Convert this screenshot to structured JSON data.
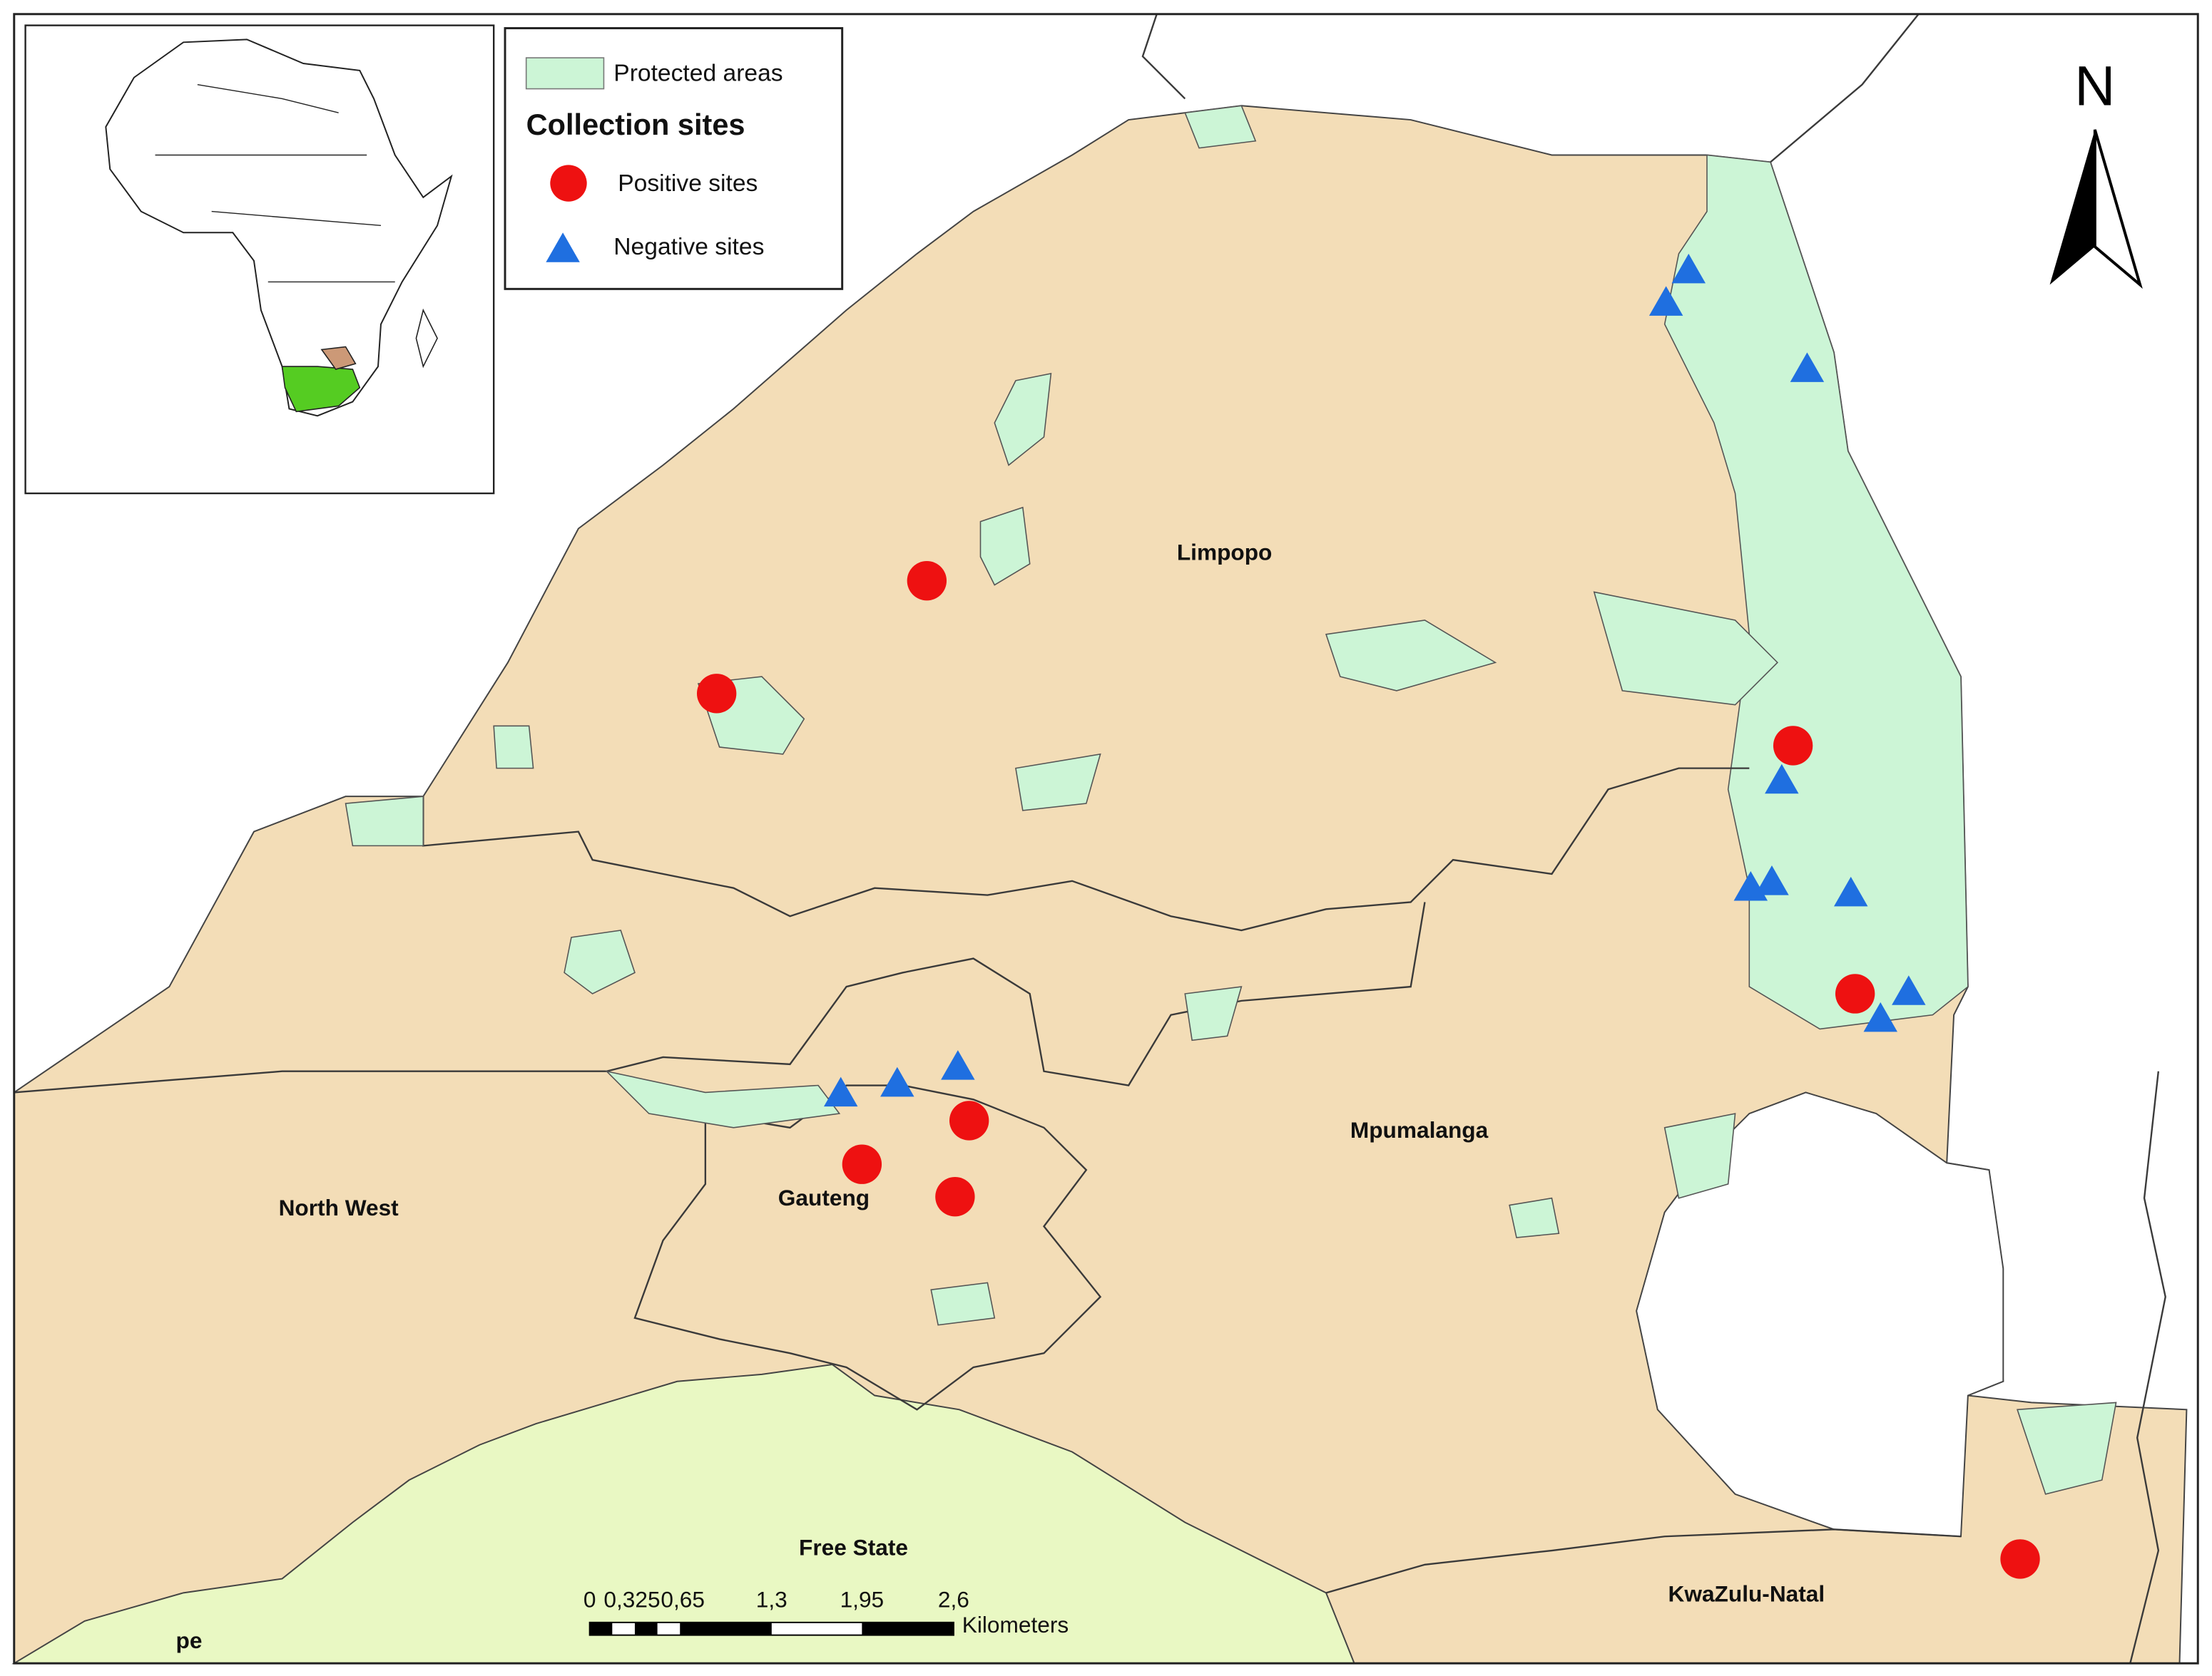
{
  "legend": {
    "protected_areas": "Protected areas",
    "title": "Collection sites",
    "items": [
      "Positive sites",
      "Negative sites"
    ]
  },
  "north": "N",
  "regions": [
    "Limpopo",
    "Mpumalanga",
    "North West",
    "Gauteng",
    "Free State",
    "KwaZulu-Natal",
    "pe"
  ],
  "scale_bar": {
    "labels": [
      "0",
      "0,325",
      "0,65",
      "1,3",
      "1,95",
      "2,6"
    ],
    "unit": "Kilometers"
  }
}
